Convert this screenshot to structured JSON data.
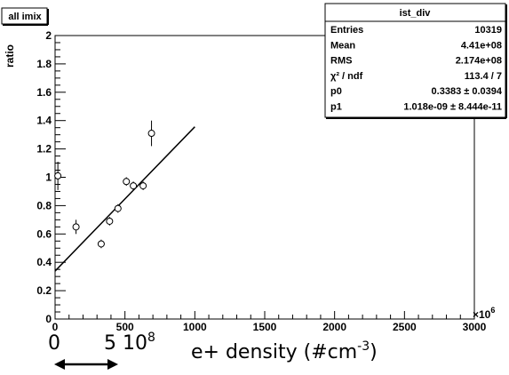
{
  "pad_title": "all imix",
  "stats_box": {
    "title": "ist_div",
    "rows": [
      {
        "label": "Entries",
        "value": "10319"
      },
      {
        "label": "Mean",
        "value": "4.41e+08"
      },
      {
        "label": "RMS",
        "value": "2.174e+08"
      },
      {
        "label": "χ² / ndf",
        "value": "113.4 / 7"
      },
      {
        "label": "p0",
        "value": "0.3383 ± 0.0394"
      },
      {
        "label": "p1",
        "value": "1.018e-09 ± 8.444e-11"
      }
    ]
  },
  "annotation": {
    "zero_label": "0",
    "five_label": "5 10",
    "five_exponent": "8",
    "xlabel_main": "e+ density (#cm",
    "xlabel_exponent": "-3",
    "xlabel_close": ")"
  },
  "chart_data": {
    "type": "scatter",
    "title": "",
    "xlabel": "",
    "ylabel": "ratio",
    "x_multiplier_label": "×10",
    "x_multiplier_exponent": "6",
    "xlim": [
      0,
      3000
    ],
    "ylim": [
      0,
      2
    ],
    "x_ticks": [
      0,
      500,
      1000,
      1500,
      2000,
      2500,
      3000
    ],
    "x_tick_labels": [
      "0",
      "500",
      "1000",
      "1500",
      "2000",
      "2500",
      "3000"
    ],
    "y_ticks": [
      0,
      0.2,
      0.4,
      0.6,
      0.8,
      1,
      1.2,
      1.4,
      1.6,
      1.8,
      2
    ],
    "y_tick_labels": [
      "0",
      "0.2",
      "0.4",
      "0.6",
      "0.8",
      "1",
      "1.2",
      "1.4",
      "1.6",
      "1.8",
      "2"
    ],
    "points": [
      {
        "x": 20,
        "y": 1.01,
        "err": 0.1
      },
      {
        "x": 150,
        "y": 0.65,
        "err": 0.05
      },
      {
        "x": 330,
        "y": 0.53,
        "err": 0.03
      },
      {
        "x": 390,
        "y": 0.69,
        "err": 0.03
      },
      {
        "x": 450,
        "y": 0.78,
        "err": 0.03
      },
      {
        "x": 510,
        "y": 0.97,
        "err": 0.03
      },
      {
        "x": 560,
        "y": 0.94,
        "err": 0.03
      },
      {
        "x": 630,
        "y": 0.94,
        "err": 0.03
      },
      {
        "x": 690,
        "y": 1.31,
        "err": 0.09
      }
    ],
    "fit": {
      "p0": 0.3383,
      "p1": 0.001018,
      "x_range": [
        0,
        1000
      ]
    },
    "grid": false
  }
}
